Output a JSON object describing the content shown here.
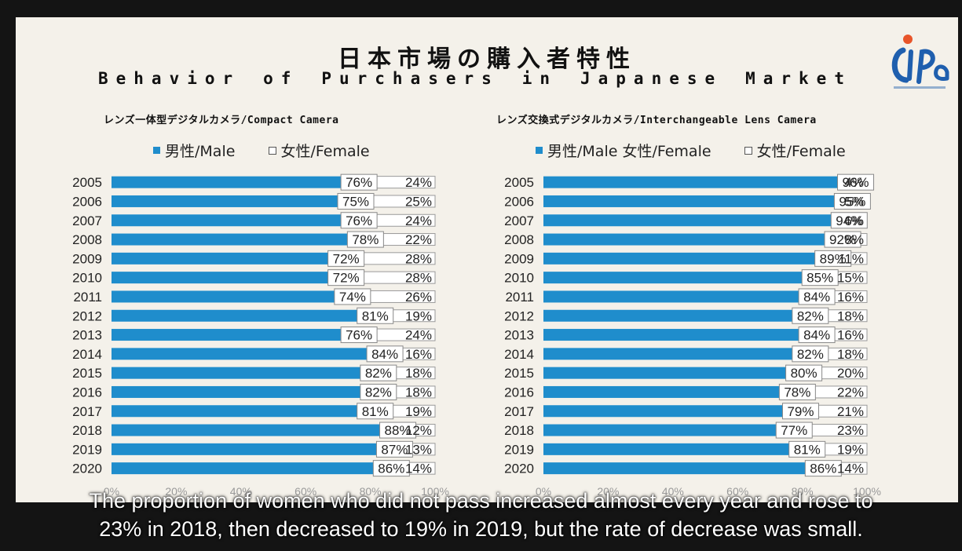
{
  "title_jp": "日本市場の購入者特性",
  "title_en": "Behavior of Purchasers in Japanese Market",
  "logo_text": "CIPA",
  "caption_lines": [
    "The proportion of women who did not pass increased almost every year and rose to",
    "23% in 2018, then decreased to 19% in 2019, but the rate of decrease was small."
  ],
  "colors": {
    "male": "#1f8dcc",
    "female": "#ffffff"
  },
  "chart_data": [
    {
      "type": "bar",
      "stacked": true,
      "orientation": "horizontal",
      "title": "レンズ一体型デジタルカメラ/Compact Camera",
      "legend": [
        "男性/Male",
        "女性/Female"
      ],
      "xlim": [
        0,
        100
      ],
      "xticks": [
        "0%",
        "20%",
        "40%",
        "60%",
        "80%",
        "100%"
      ],
      "categories": [
        "2005",
        "2006",
        "2007",
        "2008",
        "2009",
        "2010",
        "2011",
        "2012",
        "2013",
        "2014",
        "2015",
        "2016",
        "2017",
        "2018",
        "2019",
        "2020"
      ],
      "series": [
        {
          "name": "男性/Male",
          "values": [
            76,
            75,
            76,
            78,
            72,
            72,
            74,
            81,
            76,
            84,
            82,
            82,
            81,
            88,
            87,
            86
          ]
        },
        {
          "name": "女性/Female",
          "values": [
            24,
            25,
            24,
            22,
            28,
            28,
            26,
            19,
            24,
            16,
            18,
            18,
            19,
            12,
            13,
            14
          ]
        }
      ]
    },
    {
      "type": "bar",
      "stacked": true,
      "orientation": "horizontal",
      "title": "レンズ交換式デジタルカメラ/Interchangeable Lens Camera",
      "legend": [
        "男性/Male 女性/Female",
        "女性/Female"
      ],
      "xlim": [
        0,
        100
      ],
      "xticks": [
        "0%",
        "20%",
        "40%",
        "60%",
        "80%",
        "100%"
      ],
      "categories": [
        "2005",
        "2006",
        "2007",
        "2008",
        "2009",
        "2010",
        "2011",
        "2012",
        "2013",
        "2014",
        "2015",
        "2016",
        "2017",
        "2018",
        "2019",
        "2020"
      ],
      "series": [
        {
          "name": "男性/Male",
          "values": [
            96,
            95,
            94,
            92,
            89,
            85,
            84,
            82,
            84,
            82,
            80,
            78,
            79,
            77,
            81,
            86
          ]
        },
        {
          "name": "女性/Female",
          "values": [
            4,
            5,
            6,
            8,
            11,
            15,
            16,
            18,
            16,
            18,
            20,
            22,
            21,
            23,
            19,
            14
          ]
        }
      ]
    }
  ]
}
